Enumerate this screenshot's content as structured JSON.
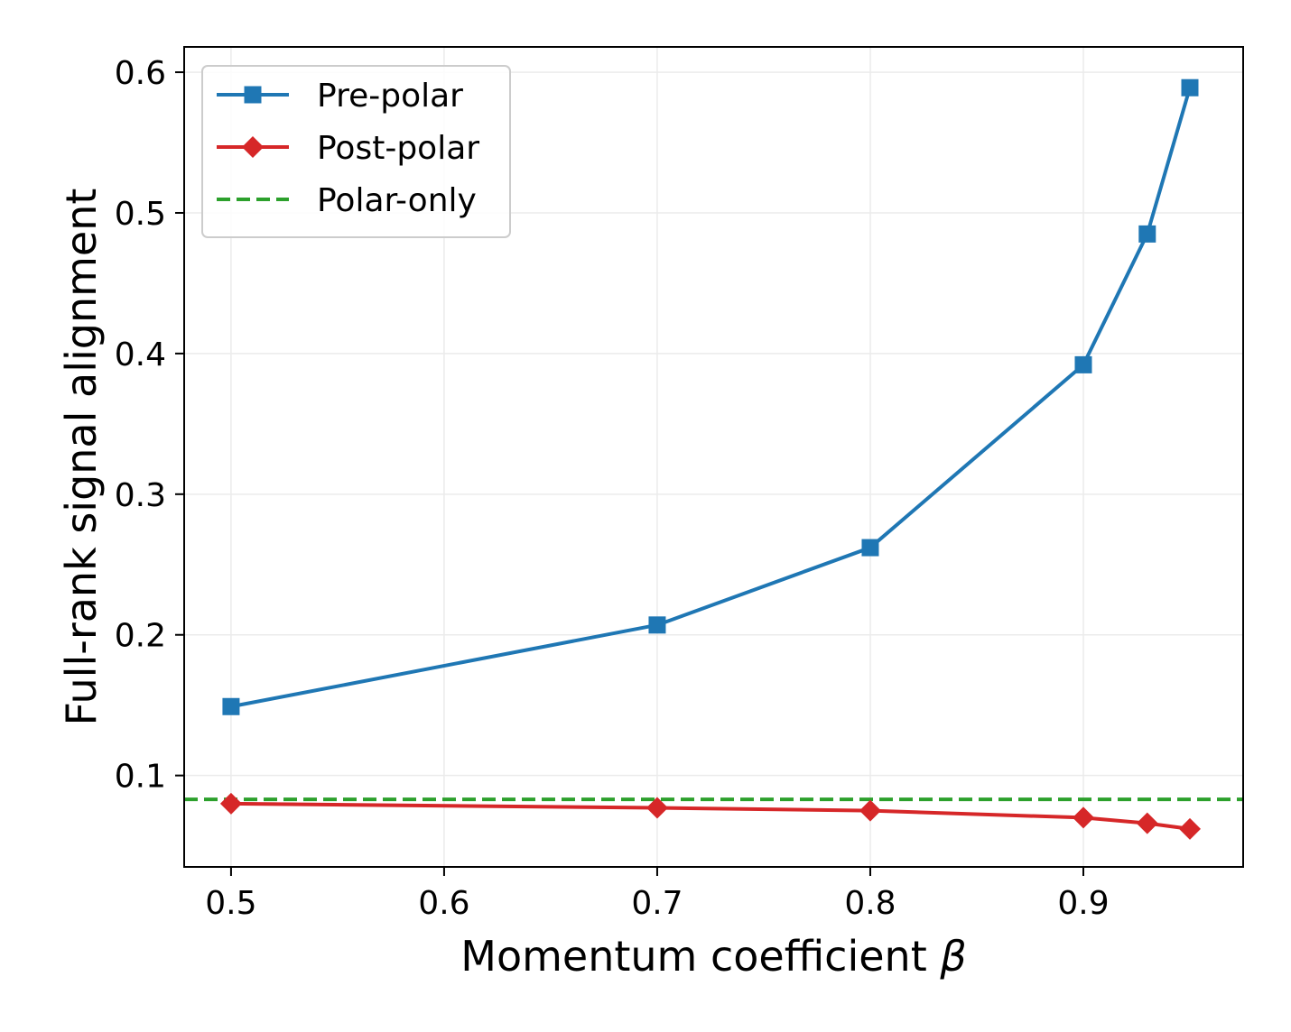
{
  "chart_data": {
    "type": "line",
    "title": "",
    "xlabel": "Momentum coefficient",
    "xlabel_symbol": "β",
    "ylabel": "Full-rank signal alignment",
    "xlim": [
      0.478,
      0.975
    ],
    "ylim": [
      0.035,
      0.618
    ],
    "xticks": [
      0.5,
      0.6,
      0.7,
      0.8,
      0.9
    ],
    "xtick_labels": [
      "0.5",
      "0.6",
      "0.7",
      "0.8",
      "0.9"
    ],
    "yticks": [
      0.1,
      0.2,
      0.3,
      0.4,
      0.5,
      0.6
    ],
    "ytick_labels": [
      "0.1",
      "0.2",
      "0.3",
      "0.4",
      "0.5",
      "0.6"
    ],
    "grid": true,
    "legend_position": "top-left",
    "x": [
      0.5,
      0.7,
      0.8,
      0.9,
      0.93,
      0.95
    ],
    "series": [
      {
        "name": "Pre-polar",
        "values": [
          0.149,
          0.207,
          0.262,
          0.392,
          0.485,
          0.589
        ],
        "color": "#1f77b4",
        "marker": "square",
        "line_style": "solid"
      },
      {
        "name": "Post-polar",
        "values": [
          0.08,
          0.077,
          0.075,
          0.07,
          0.066,
          0.062
        ],
        "color": "#d62728",
        "marker": "diamond",
        "line_style": "solid"
      }
    ],
    "reference_lines": [
      {
        "name": "Polar-only",
        "y": 0.083,
        "color": "#2ca02c",
        "line_style": "dashed"
      }
    ]
  }
}
